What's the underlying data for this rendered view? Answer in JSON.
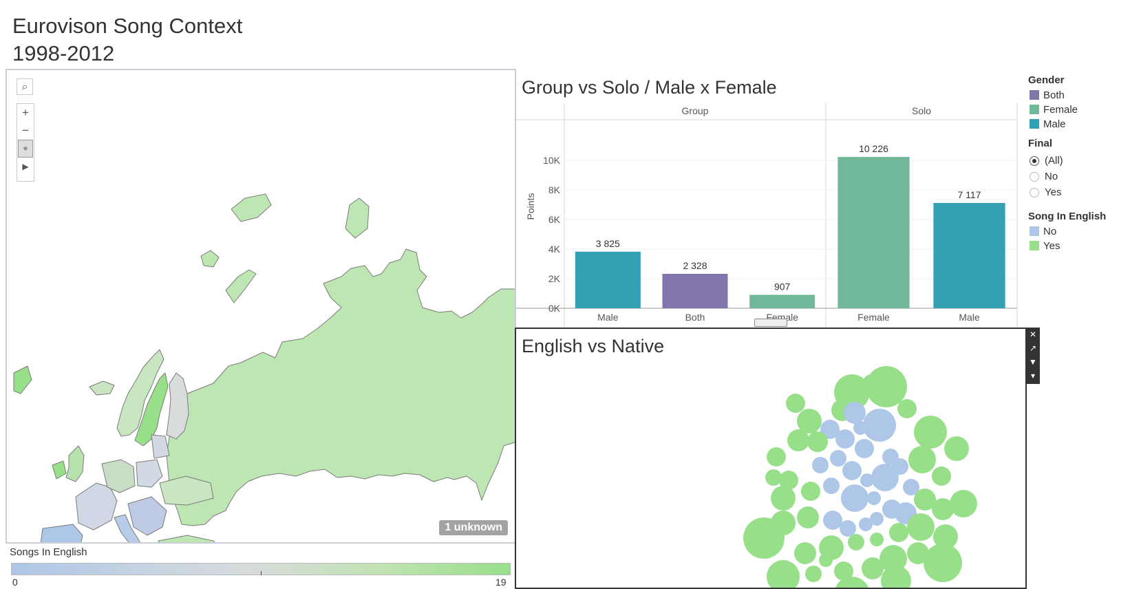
{
  "dashboard": {
    "title_line1": "Eurovison Song Context",
    "title_line2": "1998-2012"
  },
  "map": {
    "toolbar": {
      "search_icon": "⌕",
      "zoom_in": "+",
      "zoom_out": "−",
      "pan_select": "⌖",
      "expand": "▶"
    },
    "unknown_badge": "1 unknown",
    "legend": {
      "title": "Songs In English",
      "min": "0",
      "max": "19",
      "colors": [
        "#aec7e8",
        "#d8dcdc",
        "#98df8a"
      ]
    }
  },
  "bar_chart": {
    "title": "Group vs Solo / Male x Female",
    "y_axis_label": "Points",
    "y_ticks": [
      "0K",
      "2K",
      "4K",
      "6K",
      "8K",
      "10K"
    ]
  },
  "chart_data": {
    "type": "bar",
    "title": "Group vs Solo / Male x Female",
    "ylabel": "Points",
    "ylim": [
      0,
      12000
    ],
    "panels": [
      "Group",
      "Solo"
    ],
    "bars": [
      {
        "panel": "Group",
        "category": "Male",
        "gender": "Male",
        "value": 3825,
        "label": "3 825"
      },
      {
        "panel": "Group",
        "category": "Both",
        "gender": "Both",
        "value": 2328,
        "label": "2 328"
      },
      {
        "panel": "Group",
        "category": "Female",
        "gender": "Female",
        "value": 907,
        "label": "907"
      },
      {
        "panel": "Solo",
        "category": "Female",
        "gender": "Female",
        "value": 10226,
        "label": "10 226"
      },
      {
        "panel": "Solo",
        "category": "Male",
        "gender": "Male",
        "value": 7117,
        "label": "7 117"
      }
    ],
    "colors": {
      "Both": "#8175aa",
      "Female": "#6fb899",
      "Male": "#31a1b3"
    }
  },
  "legends": {
    "gender": {
      "title": "Gender",
      "items": [
        {
          "label": "Both",
          "color": "#8175aa"
        },
        {
          "label": "Female",
          "color": "#6fb899"
        },
        {
          "label": "Male",
          "color": "#31a1b3"
        }
      ]
    },
    "final": {
      "title": "Final",
      "options": [
        {
          "label": "(All)",
          "selected": true
        },
        {
          "label": "No",
          "selected": false
        },
        {
          "label": "Yes",
          "selected": false
        }
      ]
    },
    "english": {
      "title": "Song In English",
      "items": [
        {
          "label": "No",
          "color": "#aec7e8"
        },
        {
          "label": "Yes",
          "color": "#98df8a"
        }
      ]
    }
  },
  "bubble_chart": {
    "title": "English vs Native",
    "tools": {
      "close": "✕",
      "popout": "↗",
      "filter": "▼",
      "menu": "▾"
    }
  }
}
